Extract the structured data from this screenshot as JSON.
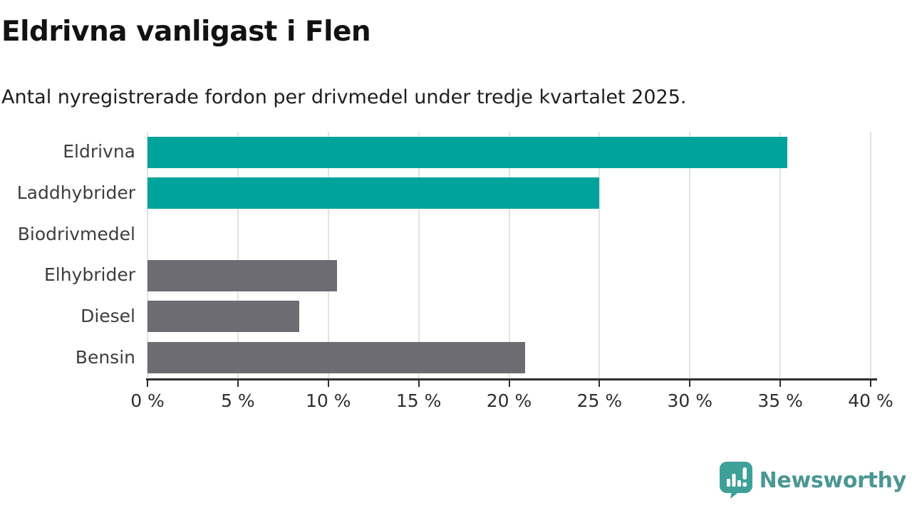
{
  "page": {
    "title": "Eldrivna vanligast i Flen",
    "subtitle": "Antal nyregistrerade fordon per drivmedel under tredje kvartalet 2025."
  },
  "chart_data": {
    "type": "bar",
    "orientation": "horizontal",
    "title": "Eldrivna vanligast i Flen",
    "subtitle": "Antal nyregistrerade fordon per drivmedel under tredje kvartalet 2025.",
    "categories": [
      "Eldrivna",
      "Laddhybrider",
      "Biodrivmedel",
      "Elhybrider",
      "Diesel",
      "Bensin"
    ],
    "values": [
      35.4,
      25.0,
      0,
      10.5,
      8.4,
      20.9
    ],
    "unit": "%",
    "xlim": [
      0,
      40
    ],
    "x_ticks": [
      0,
      5,
      10,
      15,
      20,
      25,
      30,
      35,
      40
    ],
    "x_tick_labels": [
      "0 %",
      "5 %",
      "10 %",
      "15 %",
      "20 %",
      "25 %",
      "30 %",
      "35 %",
      "40 %"
    ],
    "bar_colors": [
      "#00A39B",
      "#00A39B",
      "#6C6C72",
      "#6C6C72",
      "#6C6C72",
      "#6C6C72"
    ],
    "grid": true,
    "legend": false,
    "highlight_color": "#00A39B",
    "default_color": "#6C6C72",
    "gridline_color": "#E3E3E3",
    "axis_color": "#2E2E2E"
  },
  "branding": {
    "logo_text": "Newsworthy",
    "logo_text_color": "#4A9792",
    "logo_icon_color": "#3DA099",
    "logo_icon": "speech-bubble-bar-chart-icon"
  }
}
